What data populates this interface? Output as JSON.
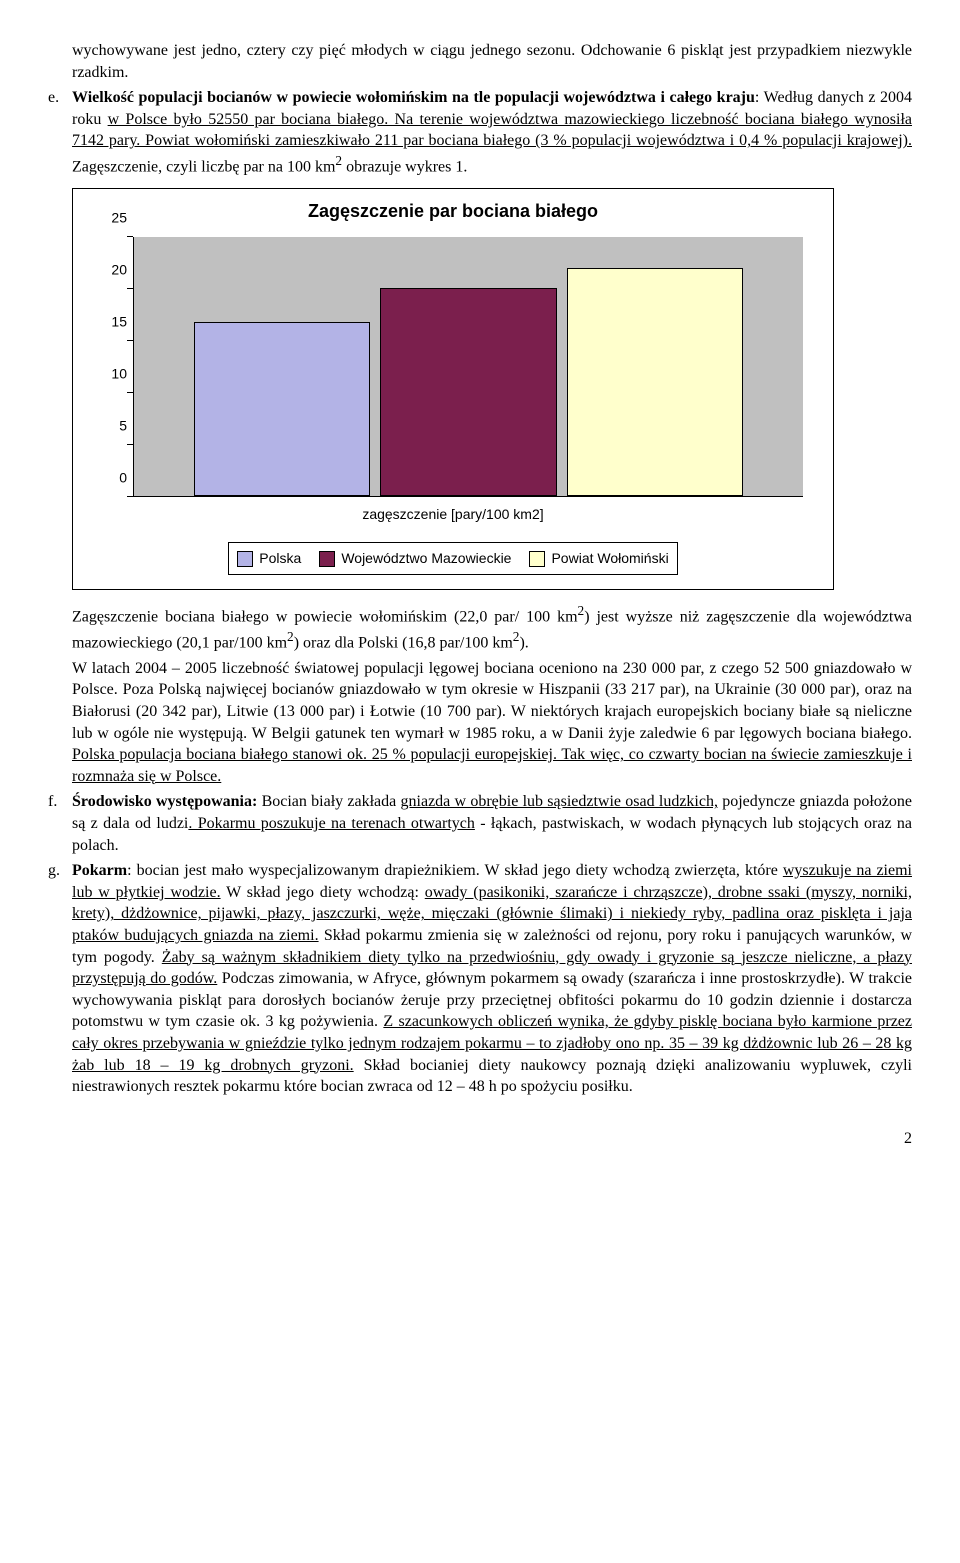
{
  "para_intro_1": "wychowywane jest jedno, cztery czy pięć młodych w ciągu jednego sezonu. Odchowanie 6 piskląt jest przypadkiem niezwykle rzadkim.",
  "item_e": {
    "letter": "e.",
    "t1": "Wielkość populacji bocianów w powiecie wołomińskim na tle populacji województwa i całego kraju",
    "t2": ": Według danych z 2004 roku ",
    "t3": "w Polsce było 52550 par bociana białego. Na terenie województwa mazowieckiego liczebność bociana białego wynosiła 7142 pary. Powiat wołomiński zamieszkiwało 211 par bociana białego (3 % populacji województwa i 0,4 % populacji krajowej).",
    "t4": " Zagęszczenie, czyli liczbę par na 100 km",
    "t5": " obrazuje wykres 1."
  },
  "chart": {
    "title": "Zagęszczenie par bociana białego",
    "x_label": "zagęszczenie [pary/100 km2]",
    "y_max": 25,
    "y_ticks": [
      0,
      5,
      10,
      15,
      20,
      25
    ],
    "plot_bg": "#c0c0c0",
    "series": [
      {
        "label": "Polska",
        "value": 16.8,
        "color": "#b3b3e6"
      },
      {
        "label": "Województwo Mazowieckie",
        "value": 20.1,
        "color": "#7b1f4d"
      },
      {
        "label": "Powiat Wołomiński",
        "value": 22.0,
        "color": "#ffffcc"
      }
    ]
  },
  "para_after_chart_1a": "Zagęszczenie bociana białego w powiecie wołomińskim (22,0 par/ 100 km",
  "para_after_chart_1b": ") jest wyższe niż zagęszczenie dla województwa mazowieckiego (20,1 par/100 km",
  "para_after_chart_1c": ") oraz dla Polski (16,8 par/100 km",
  "para_after_chart_1d": ").",
  "para_after_chart_2a": "W latach 2004 – 2005 liczebność światowej populacji lęgowej bociana oceniono na 230 000 par, z czego 52 500 gniazdowało w Polsce. Poza Polską najwięcej bocianów gniazdowało w tym okresie w Hiszpanii (33 217 par), na Ukrainie (30 000 par), oraz na Białorusi (20 342 par), Litwie (13 000 par) i Łotwie (10 700 par). W niektórych krajach europejskich bociany białe są nieliczne lub w ogóle nie występują. W Belgii gatunek ten wymarł w 1985 roku, a w Danii żyje zaledwie 6 par lęgowych bociana białego. ",
  "para_after_chart_2b": "Polska populacja bociana białego stanowi ok. 25 % populacji europejskiej. Tak więc, co czwarty bocian na świecie zamieszkuje i rozmnaża się w Polsce.",
  "item_f": {
    "letter": "f.",
    "lead": "Środowisko występowania:",
    "t1": " Bocian biały zakłada ",
    "t2": "gniazda w obrębie lub sąsiedztwie osad ludzkich,",
    "t3": " pojedyncze gniazda położone są z dala od ludzi",
    "t4": ". Pokarmu poszukuje na terenach otwartych",
    "t5": " - łąkach, pastwiskach, w wodach płynących lub stojących oraz na polach."
  },
  "item_g": {
    "letter": "g.",
    "lead": "Pokarm",
    "t1": ": bocian jest mało wyspecjalizowanym drapieżnikiem. W skład jego diety wchodzą zwierzęta, które ",
    "t2": "wyszukuje na ziemi lub w płytkiej wodzie.",
    "t3": " W skład jego diety wchodzą: ",
    "t4": "owady (pasikoniki, szarańcze i chrząszcze), drobne ssaki (myszy, norniki, krety), dżdżownice, pijawki, płazy, jaszczurki, węże, mięczaki (głównie ślimaki) i niekiedy ryby, padlina oraz pisklęta i jaja ptaków budujących gniazda na ziemi.",
    "t5": " Skład pokarmu zmienia się w zależności od rejonu, pory roku i panujących warunków, w tym pogody. ",
    "t6": "Żaby są ważnym składnikiem diety tylko na przedwiośniu, gdy owady i gryzonie są jeszcze nieliczne, a płazy przystępują do godów.",
    "t7": " Podczas zimowania, w Afryce, głównym pokarmem są owady (szarańcza i inne prostoskrzydłe). W trakcie wychowywania piskląt para dorosłych bocianów żeruje przy przeciętnej obfitości pokarmu do 10 godzin dziennie i dostarcza potomstwu w tym czasie ok. 3 kg pożywienia. ",
    "t8": "Z szacunkowych obliczeń wynika, że gdyby pisklę bociana było karmione przez cały okres przebywania w gnieździe tylko jednym rodzajem pokarmu – to zjadłoby ono np. 35 – 39 kg dżdżownic lub 26 – 28 kg żab lub 18 – 19 kg drobnych gryzoni.",
    "t9": " Skład bocianiej diety naukowcy poznają dzięki analizowaniu wypluwek, czyli niestrawionych resztek pokarmu które bocian zwraca od 12 – 48 h po spożyciu posiłku."
  },
  "page_number": "2"
}
